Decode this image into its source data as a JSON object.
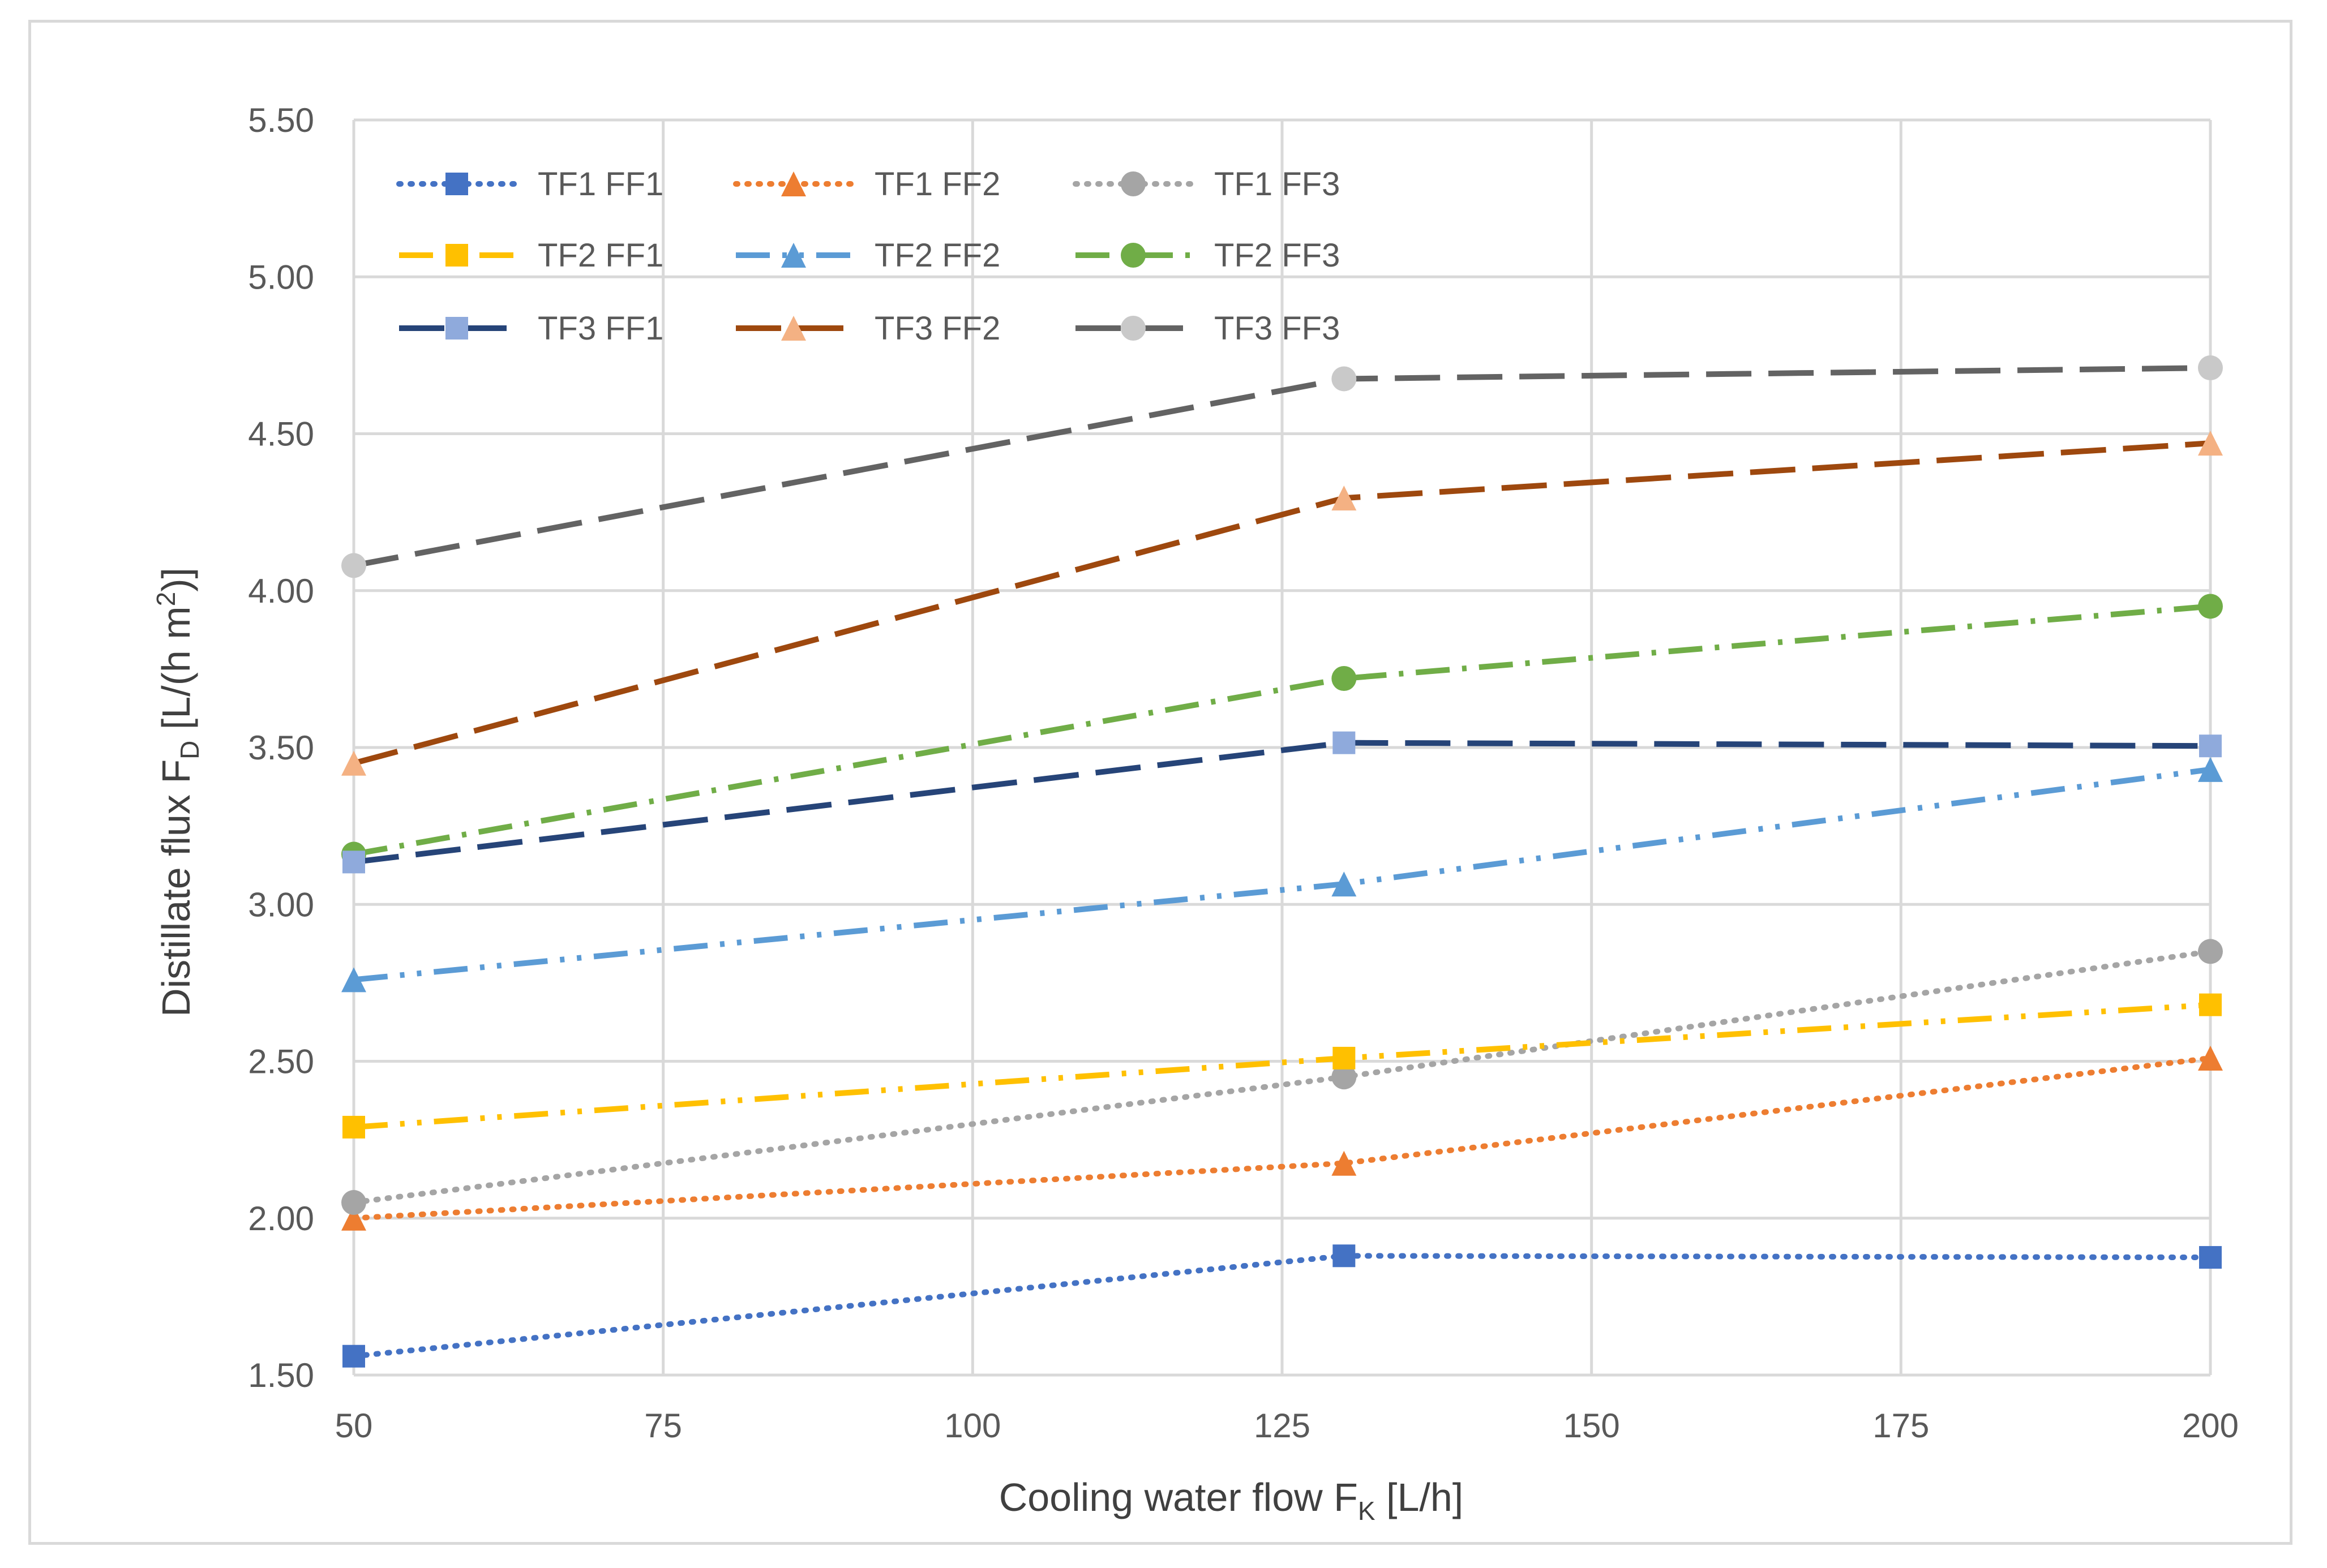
{
  "chart_data": {
    "type": "line",
    "title": "",
    "xlabel": "Cooling water flow F",
    "xlabel_sub": "K",
    "xlabel_unit": "  [L/h]",
    "ylabel": "Distillate flux F",
    "ylabel_sub": "D",
    "ylabel_unit": " [L/(h m",
    "ylabel_sup": "2",
    "ylabel_close": ")]",
    "xlim": [
      50,
      200
    ],
    "ylim": [
      1.5,
      5.5
    ],
    "x_ticks": [
      50,
      75,
      100,
      125,
      150,
      175,
      200
    ],
    "y_ticks": [
      1.5,
      2.0,
      2.5,
      3.0,
      3.5,
      4.0,
      4.5,
      5.0,
      5.5
    ],
    "x_tick_labels": [
      "50",
      "75",
      "100",
      "125",
      "150",
      "175",
      "200"
    ],
    "y_tick_labels": [
      "1.50",
      "2.00",
      "2.50",
      "3.00",
      "3.50",
      "4.00",
      "4.50",
      "5.00",
      "5.50"
    ],
    "grid": true,
    "legend_position": "top-left, inside plot",
    "x": [
      50,
      130,
      200
    ],
    "series": [
      {
        "name": "TF1 FF1",
        "values": [
          1.56,
          1.88,
          1.875
        ],
        "color": "#4472c4",
        "marker": "square",
        "dash": "dot"
      },
      {
        "name": "TF1 FF2",
        "values": [
          2.0,
          2.175,
          2.51
        ],
        "color": "#ed7d31",
        "marker": "triangle",
        "dash": "dot"
      },
      {
        "name": "TF1 FF3",
        "values": [
          2.05,
          2.45,
          2.85
        ],
        "color": "#a5a5a5",
        "marker": "circle",
        "dash": "dot"
      },
      {
        "name": "TF2 FF1",
        "values": [
          2.29,
          2.51,
          2.68
        ],
        "color": "#ffc000",
        "marker": "square",
        "dash": "longdashdotdot"
      },
      {
        "name": "TF2 FF2",
        "values": [
          2.76,
          3.065,
          3.43
        ],
        "color": "#5b9bd5",
        "marker": "triangle",
        "dash": "longdashdotdot"
      },
      {
        "name": "TF2 FF3",
        "values": [
          3.16,
          3.72,
          3.95
        ],
        "color": "#70ad47",
        "marker": "circle",
        "dash": "longdashdot"
      },
      {
        "name": "TF3 FF1",
        "values": [
          3.135,
          3.515,
          3.505
        ],
        "color": "#264478",
        "marker": "square",
        "dash": "longdash",
        "markerColor": "#8faadc"
      },
      {
        "name": "TF3 FF2",
        "values": [
          3.45,
          4.295,
          4.47
        ],
        "color": "#9e480e",
        "marker": "triangle",
        "dash": "longdash",
        "markerColor": "#f4b183"
      },
      {
        "name": "TF3 FF3",
        "values": [
          4.08,
          4.675,
          4.71
        ],
        "color": "#636363",
        "marker": "circle",
        "dash": "longdash",
        "markerColor": "#c9c9c9"
      }
    ]
  },
  "colors": {
    "grid": "#d9d9d9",
    "axis_text": "#595959"
  }
}
